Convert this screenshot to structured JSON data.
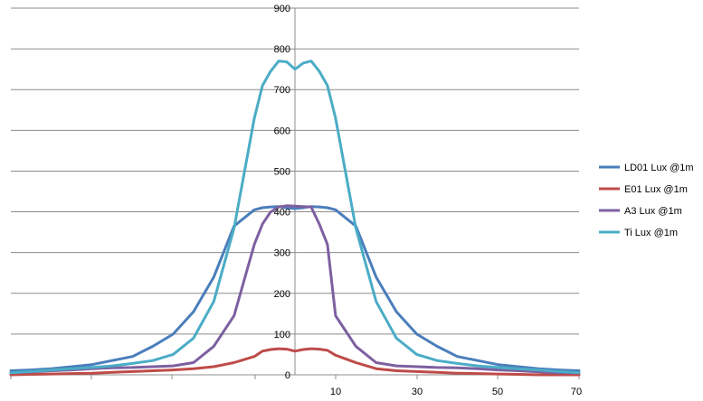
{
  "chart_data": {
    "type": "line",
    "title": "",
    "xlabel": "",
    "ylabel": "",
    "ylim": [
      0,
      900
    ],
    "y_ticks": [
      0,
      100,
      200,
      300,
      400,
      500,
      600,
      700,
      800,
      900
    ],
    "x_tick_labels": [
      "10",
      "30",
      "50",
      "70"
    ],
    "grid": "horizontal",
    "legend_position": "right",
    "x": [
      -70,
      -65,
      -60,
      -55,
      -50,
      -45,
      -40,
      -35,
      -30,
      -25,
      -20,
      -15,
      -10,
      -8,
      -6,
      -4,
      -2,
      0,
      2,
      4,
      6,
      8,
      10,
      15,
      20,
      25,
      30,
      35,
      40,
      45,
      50,
      55,
      60,
      65,
      70
    ],
    "series": [
      {
        "name": "LD01 Lux @1m",
        "color": "#4a7ebb",
        "values": [
          10,
          12,
          15,
          20,
          25,
          35,
          45,
          70,
          100,
          155,
          240,
          365,
          405,
          410,
          412,
          413,
          410,
          408,
          410,
          413,
          412,
          410,
          405,
          365,
          240,
          155,
          100,
          70,
          45,
          35,
          25,
          20,
          15,
          12,
          10
        ]
      },
      {
        "name": "E01 Lux @1m",
        "color": "#be4b48",
        "values": [
          0,
          1,
          2,
          3,
          4,
          6,
          8,
          10,
          12,
          15,
          20,
          30,
          45,
          58,
          62,
          64,
          63,
          58,
          62,
          64,
          63,
          60,
          48,
          30,
          15,
          10,
          8,
          6,
          4,
          3,
          2,
          1,
          0,
          0,
          0
        ]
      },
      {
        "name": "A3 Lux @1m",
        "color": "#7d60a0",
        "values": [
          5,
          7,
          10,
          12,
          15,
          17,
          18,
          20,
          22,
          30,
          70,
          145,
          320,
          370,
          400,
          412,
          415,
          414,
          413,
          412,
          370,
          320,
          145,
          70,
          30,
          22,
          20,
          18,
          17,
          15,
          12,
          10,
          7,
          5,
          5
        ]
      },
      {
        "name": "Ti Lux @1m",
        "color": "#4bacc6",
        "values": [
          5,
          8,
          12,
          15,
          18,
          22,
          28,
          35,
          50,
          90,
          180,
          360,
          630,
          710,
          745,
          770,
          768,
          750,
          765,
          770,
          745,
          710,
          630,
          360,
          180,
          90,
          50,
          35,
          28,
          22,
          18,
          15,
          12,
          8,
          5
        ]
      }
    ]
  }
}
